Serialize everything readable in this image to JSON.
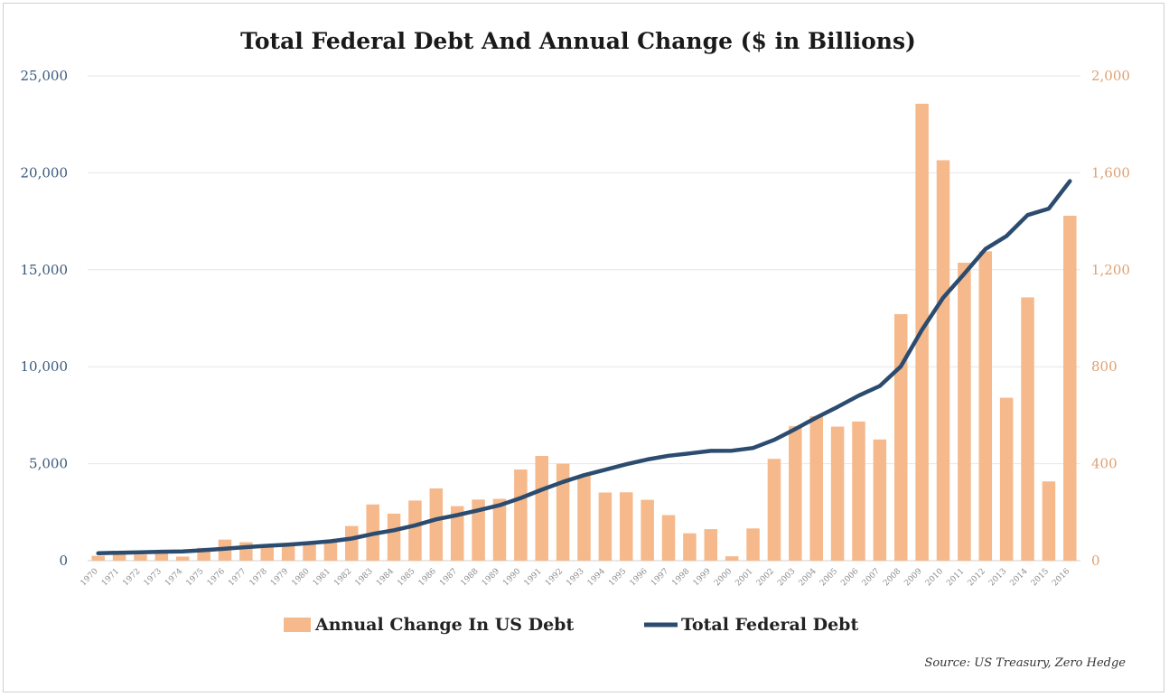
{
  "chart_data": {
    "type": "bar+line",
    "title": "Total Federal Debt And Annual Change ($ in Billions)",
    "source": "Source: US Treasury, Zero Hedge",
    "categories": [
      "1970",
      "1971",
      "1972",
      "1973",
      "1974",
      "1975",
      "1976",
      "1977",
      "1978",
      "1979",
      "1980",
      "1981",
      "1982",
      "1983",
      "1984",
      "1985",
      "1986",
      "1987",
      "1988",
      "1989",
      "1990",
      "1991",
      "1992",
      "1993",
      "1994",
      "1995",
      "1996",
      "1997",
      "1998",
      "1999",
      "2000",
      "2001",
      "2002",
      "2003",
      "2004",
      "2005",
      "2006",
      "2007",
      "2008",
      "2009",
      "2010",
      "2011",
      "2012",
      "2013",
      "2014",
      "2015",
      "2016"
    ],
    "left_axis": {
      "min": 0,
      "max": 25000,
      "ticks": [
        "0",
        "5,000",
        "10,000",
        "15,000",
        "20,000",
        "25,000"
      ],
      "tick_values": [
        0,
        5000,
        10000,
        15000,
        20000,
        25000
      ]
    },
    "right_axis": {
      "min": 0,
      "max": 2000,
      "ticks": [
        "0",
        "400",
        "800",
        "1,200",
        "1,600",
        "2,000"
      ],
      "tick_values": [
        0,
        400,
        800,
        1200,
        1600,
        2000
      ]
    },
    "grid": true,
    "legend_placement": "bottom",
    "series": [
      {
        "name": "Annual Change In US Debt",
        "type": "bar",
        "axis": "right",
        "color": "#f5b98c",
        "values": [
          20,
          28,
          25,
          30,
          17,
          53,
          87,
          76,
          64,
          62,
          75,
          80,
          143,
          232,
          194,
          248,
          298,
          225,
          252,
          255,
          376,
          432,
          400,
          350,
          281,
          282,
          251,
          188,
          113,
          130,
          18,
          133,
          420,
          555,
          596,
          553,
          574,
          500,
          1017,
          1885,
          1652,
          1229,
          1276,
          672,
          1086,
          327,
          1423
        ]
      },
      {
        "name": "Total Federal Debt",
        "type": "line",
        "axis": "left",
        "color": "#2b4c6f",
        "values": [
          380,
          410,
          430,
          460,
          480,
          540,
          620,
          700,
          770,
          830,
          910,
          1000,
          1140,
          1380,
          1570,
          1820,
          2130,
          2350,
          2600,
          2860,
          3230,
          3660,
          4060,
          4410,
          4690,
          4970,
          5220,
          5410,
          5530,
          5660,
          5670,
          5810,
          6230,
          6790,
          7380,
          7930,
          8510,
          9010,
          10020,
          11910,
          13560,
          14790,
          16070,
          16740,
          17820,
          18150,
          19570
        ]
      }
    ]
  },
  "legend": {
    "bar_label": "Annual Change In US Debt",
    "line_label": "Total Federal Debt"
  }
}
